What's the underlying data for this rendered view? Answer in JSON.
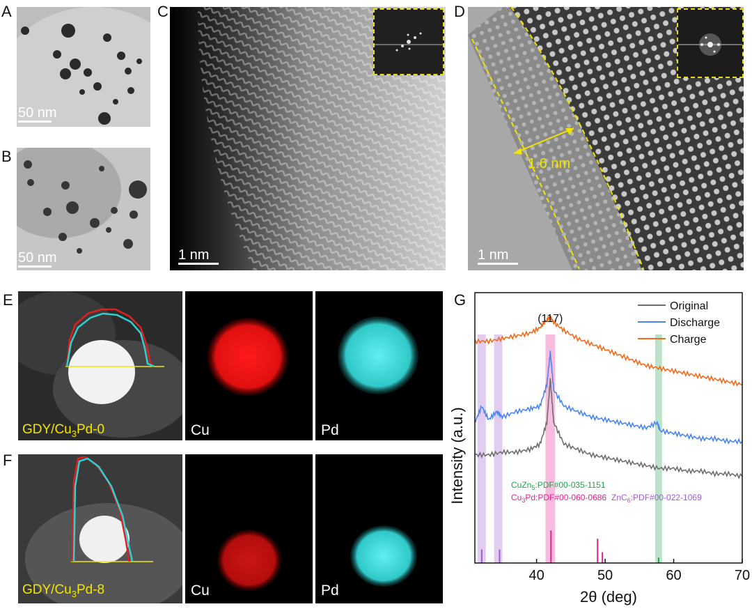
{
  "panels": {
    "A": {
      "label": "A",
      "scale": "50 nm"
    },
    "B": {
      "label": "B",
      "scale": "50 nm"
    },
    "C": {
      "label": "C",
      "scale": "1 nm"
    },
    "D": {
      "label": "D",
      "scale": "1 nm",
      "annotation": "1.6 nm"
    },
    "E": {
      "label": "E",
      "sample": "GDY/Cu",
      "sample_sub": "3",
      "sample_tail": "Pd-0",
      "map1": "Cu",
      "map2": "Pd"
    },
    "F": {
      "label": "F",
      "sample": "GDY/Cu",
      "sample_sub": "3",
      "sample_tail": "Pd-8",
      "map1": "Cu",
      "map2": "Pd"
    },
    "G": {
      "label": "G"
    }
  },
  "colors": {
    "cu_map": "#ff2020",
    "pd_map": "#40e0e0",
    "yellow": "#f2e600",
    "original": "#6e6e6e",
    "discharge": "#4a86f0",
    "charge": "#f26a1b",
    "cuzn5": "#1ea34a",
    "cu3pd": "#e02090",
    "znc6": "#a05ad0"
  },
  "chart_data": {
    "type": "line",
    "title": "",
    "xlabel": "2θ (deg)",
    "ylabel": "Intensity (a.u.)",
    "xlim": [
      31,
      70
    ],
    "xticks": [
      40,
      50,
      60,
      70
    ],
    "peak_label": "(117)",
    "legend_position": "top-right",
    "series": [
      {
        "name": "Original",
        "x": [
          31,
          33,
          35,
          37,
          39,
          40.5,
          41.5,
          42,
          42.5,
          44,
          46,
          48,
          50,
          52,
          54,
          56,
          58,
          60,
          62,
          64,
          66,
          68,
          70
        ],
        "y": [
          0.4,
          0.4,
          0.41,
          0.41,
          0.42,
          0.44,
          0.52,
          0.68,
          0.52,
          0.44,
          0.42,
          0.4,
          0.39,
          0.38,
          0.37,
          0.36,
          0.35,
          0.35,
          0.34,
          0.34,
          0.33,
          0.33,
          0.32
        ]
      },
      {
        "name": "Discharge",
        "x": [
          31,
          32,
          33,
          34.2,
          35,
          37,
          39,
          40.5,
          41.5,
          42,
          42.5,
          44,
          46,
          48,
          50,
          52,
          54,
          56,
          57.6,
          58,
          60,
          62,
          64,
          66,
          68,
          70
        ],
        "y": [
          0.52,
          0.58,
          0.53,
          0.56,
          0.54,
          0.56,
          0.57,
          0.58,
          0.66,
          0.78,
          0.64,
          0.58,
          0.56,
          0.54,
          0.53,
          0.52,
          0.51,
          0.5,
          0.52,
          0.49,
          0.48,
          0.47,
          0.46,
          0.46,
          0.45,
          0.45
        ]
      },
      {
        "name": "Charge",
        "x": [
          31,
          33,
          35,
          37,
          39,
          40.5,
          41.5,
          42,
          42.5,
          44,
          46,
          48,
          50,
          52,
          54,
          56,
          58,
          60,
          62,
          64,
          66,
          68,
          70
        ],
        "y": [
          0.82,
          0.82,
          0.83,
          0.84,
          0.85,
          0.87,
          0.9,
          0.91,
          0.89,
          0.86,
          0.83,
          0.81,
          0.79,
          0.77,
          0.75,
          0.73,
          0.72,
          0.71,
          0.7,
          0.69,
          0.68,
          0.67,
          0.66
        ]
      }
    ],
    "references": [
      {
        "name": "CuZn",
        "sub": "5",
        "tail": ":PDF#00-035-1151",
        "color": "#1ea34a",
        "lines": [
          {
            "x": 57.8,
            "h": 0.02
          }
        ],
        "band": [
          57.3,
          58.3
        ]
      },
      {
        "name": "Cu",
        "sub": "3",
        "tail": "Pd:PDF#00-060-0686",
        "color": "#e02090",
        "lines": [
          {
            "x": 42.1,
            "h": 0.12
          },
          {
            "x": 48.9,
            "h": 0.09
          },
          {
            "x": 49.6,
            "h": 0.04
          }
        ],
        "band": [
          41.3,
          42.7
        ]
      },
      {
        "name": "ZnC",
        "sub": "6",
        "tail": ":PDF#00-022-1069",
        "color": "#a05ad0",
        "lines": [
          {
            "x": 32.0,
            "h": 0.05
          },
          {
            "x": 34.6,
            "h": 0.05
          }
        ],
        "bands": [
          [
            31.4,
            32.6
          ],
          [
            33.8,
            35.0
          ]
        ]
      }
    ]
  }
}
